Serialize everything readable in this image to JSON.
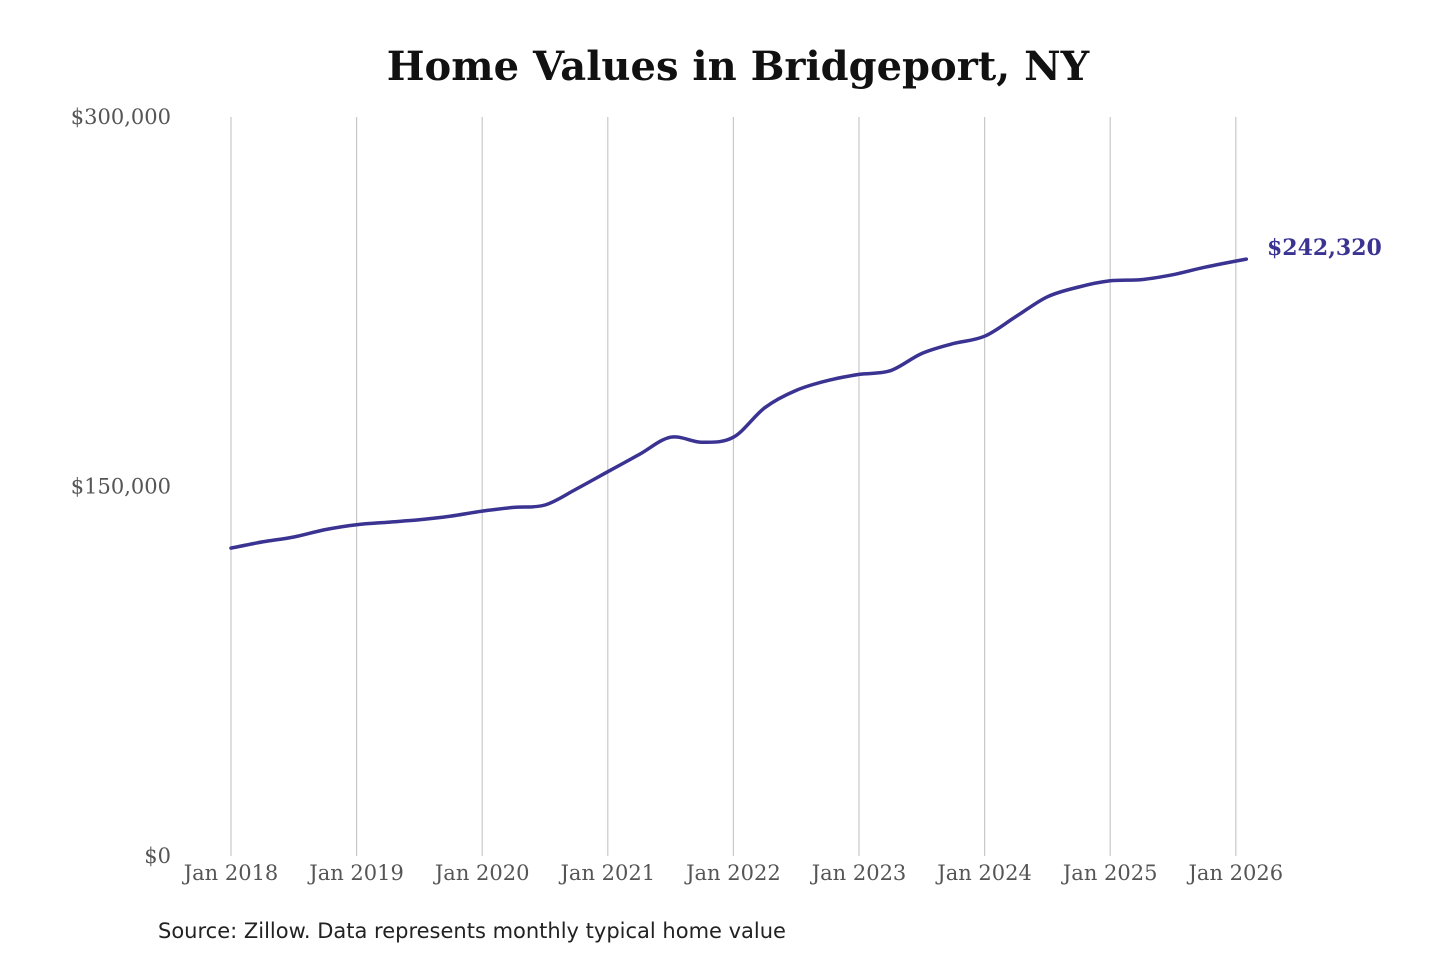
{
  "chart_data": {
    "type": "line",
    "title": "Home Values in Bridgeport, NY",
    "xlabel": "",
    "ylabel": "",
    "ylim": [
      0,
      300000
    ],
    "xlim": [
      "2018-01",
      "2026-02"
    ],
    "y_ticks": [
      {
        "value": 0,
        "label": "$0"
      },
      {
        "value": 150000,
        "label": "$150,000"
      },
      {
        "value": 300000,
        "label": "$300,000"
      }
    ],
    "x_ticks": [
      {
        "value": "2018-01",
        "label": "Jan 2018"
      },
      {
        "value": "2019-01",
        "label": "Jan 2019"
      },
      {
        "value": "2020-01",
        "label": "Jan 2020"
      },
      {
        "value": "2021-01",
        "label": "Jan 2021"
      },
      {
        "value": "2022-01",
        "label": "Jan 2022"
      },
      {
        "value": "2023-01",
        "label": "Jan 2023"
      },
      {
        "value": "2024-01",
        "label": "Jan 2024"
      },
      {
        "value": "2025-01",
        "label": "Jan 2025"
      },
      {
        "value": "2026-01",
        "label": "Jan 2026"
      }
    ],
    "grid": {
      "vertical": true,
      "horizontal": false
    },
    "series": [
      {
        "color": "#3a3391",
        "points": [
          {
            "x": "2018-01",
            "y": 125000
          },
          {
            "x": "2018-04",
            "y": 127500
          },
          {
            "x": "2018-07",
            "y": 129500
          },
          {
            "x": "2018-10",
            "y": 132500
          },
          {
            "x": "2019-01",
            "y": 134500
          },
          {
            "x": "2019-04",
            "y": 135500
          },
          {
            "x": "2019-07",
            "y": 136500
          },
          {
            "x": "2019-10",
            "y": 138000
          },
          {
            "x": "2020-01",
            "y": 140000
          },
          {
            "x": "2020-04",
            "y": 141500
          },
          {
            "x": "2020-07",
            "y": 142500
          },
          {
            "x": "2020-10",
            "y": 149000
          },
          {
            "x": "2021-01",
            "y": 156000
          },
          {
            "x": "2021-04",
            "y": 163000
          },
          {
            "x": "2021-07",
            "y": 170000
          },
          {
            "x": "2021-10",
            "y": 168000
          },
          {
            "x": "2022-01",
            "y": 170000
          },
          {
            "x": "2022-04",
            "y": 182000
          },
          {
            "x": "2022-07",
            "y": 189000
          },
          {
            "x": "2022-10",
            "y": 193000
          },
          {
            "x": "2023-01",
            "y": 195500
          },
          {
            "x": "2023-04",
            "y": 197000
          },
          {
            "x": "2023-07",
            "y": 204000
          },
          {
            "x": "2023-10",
            "y": 208000
          },
          {
            "x": "2024-01",
            "y": 211000
          },
          {
            "x": "2024-04",
            "y": 219000
          },
          {
            "x": "2024-07",
            "y": 227000
          },
          {
            "x": "2024-10",
            "y": 231000
          },
          {
            "x": "2025-01",
            "y": 233500
          },
          {
            "x": "2025-04",
            "y": 234000
          },
          {
            "x": "2025-07",
            "y": 236000
          },
          {
            "x": "2025-10",
            "y": 239000
          },
          {
            "x": "2026-02",
            "y": 242320
          }
        ]
      }
    ],
    "end_label": "$242,320",
    "source": "Source: Zillow. Data represents monthly typical home value"
  }
}
